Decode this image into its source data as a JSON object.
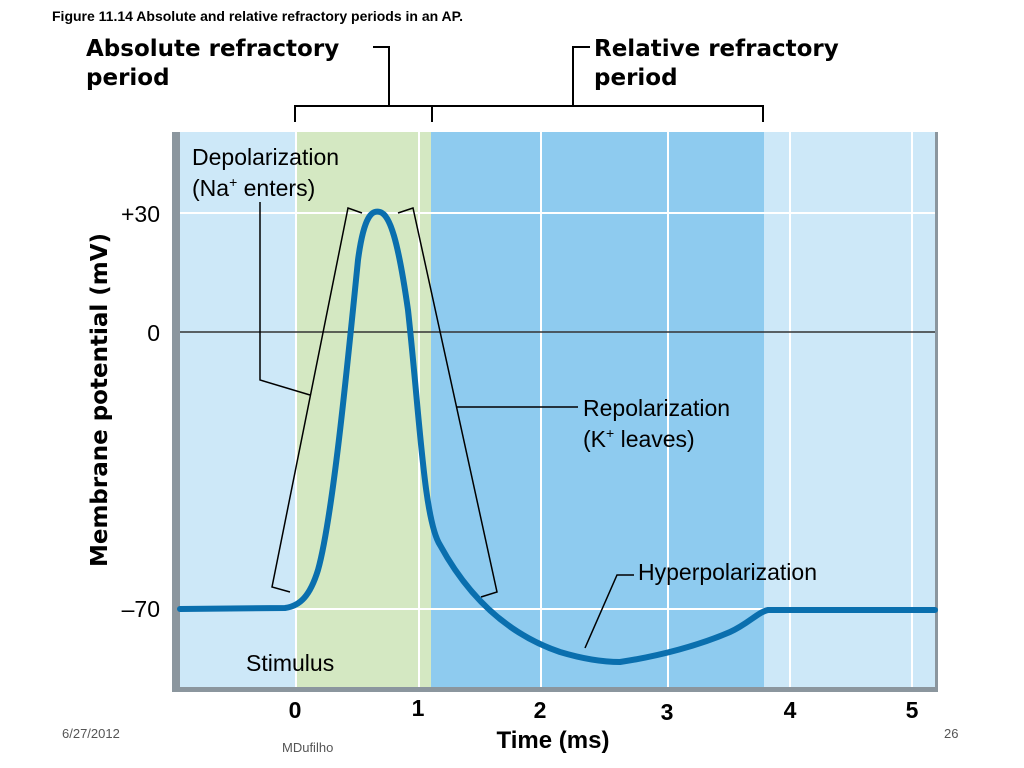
{
  "figure_caption": "Figure 11.14  Absolute and relative refractory periods in an AP.",
  "absolute_refractory": {
    "line1": "Absolute refractory",
    "line2": "period"
  },
  "relative_refractory": {
    "line1": "Relative refractory",
    "line2": "period"
  },
  "y_axis": {
    "label": "Membrane potential (mV)",
    "ticks": [
      "+30",
      "0",
      "–70"
    ]
  },
  "x_axis": {
    "label": "Time (ms)",
    "ticks": [
      "0",
      "1",
      "2",
      "3",
      "4",
      "5"
    ]
  },
  "annotations": {
    "depolarization_line1": "Depolarization",
    "depolarization_line2_pre": "(Na",
    "depolarization_line2_sup": "+",
    "depolarization_line2_post": " enters)",
    "repolarization_line1": "Repolarization",
    "repolarization_line2_pre": "(K",
    "repolarization_line2_sup": "+",
    "repolarization_line2_post": " leaves)",
    "hyperpolarization": "Hyperpolarization",
    "stimulus": "Stimulus"
  },
  "footer": {
    "date": "6/27/2012",
    "author": "MDufilho",
    "page": "26"
  },
  "colors": {
    "plot_background": "#cde8f8",
    "absolute_band": "#d4e8c2",
    "relative_band": "#8ecbef",
    "curve": "#0a6fae",
    "frame": "#9aa7b0"
  }
}
